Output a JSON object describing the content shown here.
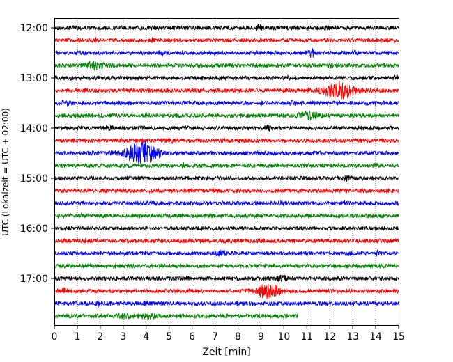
{
  "chart_data": {
    "type": "line",
    "title": "",
    "xlabel": "Zeit  [min]",
    "ylabel": "UTC (Lokalzeit = UTC + 02:00)",
    "xlim": [
      0,
      15
    ],
    "x_ticks": [
      0,
      1,
      2,
      3,
      4,
      5,
      6,
      7,
      8,
      9,
      10,
      11,
      12,
      13,
      14,
      15
    ],
    "y_ticks": [
      "12:00",
      "13:00",
      "14:00",
      "15:00",
      "16:00",
      "17:00"
    ],
    "trace_start": "12:00",
    "trace_interval_min": 15,
    "grid_vertical": "dotted",
    "colors": [
      "#000000",
      "#ff0000",
      "#0000ff",
      "#008000"
    ],
    "traces": [
      {
        "start": "12:00",
        "color": "#000000",
        "end_min": 15,
        "events": [
          {
            "t": 3.8,
            "amp": 0.3,
            "dur": 0.8
          },
          {
            "t": 8.9,
            "amp": 0.9,
            "dur": 0.2
          },
          {
            "t": 11.1,
            "amp": 0.5,
            "dur": 0.2
          }
        ]
      },
      {
        "start": "12:15",
        "color": "#ff0000",
        "end_min": 15,
        "events": [
          {
            "t": 1.8,
            "amp": 0.7,
            "dur": 0.2
          },
          {
            "t": 4.3,
            "amp": 0.4,
            "dur": 0.3
          }
        ]
      },
      {
        "start": "12:30",
        "color": "#0000ff",
        "end_min": 15,
        "events": [
          {
            "t": 4.7,
            "amp": 0.5,
            "dur": 0.3
          },
          {
            "t": 11.2,
            "amp": 1.6,
            "dur": 0.3
          },
          {
            "t": 13.1,
            "amp": 0.3,
            "dur": 0.3
          }
        ]
      },
      {
        "start": "12:45",
        "color": "#008000",
        "end_min": 15,
        "events": [
          {
            "t": 1.7,
            "amp": 1.3,
            "dur": 1.0
          },
          {
            "t": 12.1,
            "amp": 0.6,
            "dur": 0.3
          }
        ]
      },
      {
        "start": "13:00",
        "color": "#000000",
        "end_min": 15,
        "events": [
          {
            "t": 10.1,
            "amp": 0.4,
            "dur": 0.3
          },
          {
            "t": 14.9,
            "amp": 0.8,
            "dur": 0.2
          }
        ]
      },
      {
        "start": "13:15",
        "color": "#ff0000",
        "end_min": 15,
        "events": [
          {
            "t": 11.1,
            "amp": 0.8,
            "dur": 0.3
          },
          {
            "t": 12.4,
            "amp": 3.5,
            "dur": 1.6
          }
        ]
      },
      {
        "start": "13:30",
        "color": "#0000ff",
        "end_min": 15,
        "events": [
          {
            "t": 0.5,
            "amp": 0.7,
            "dur": 0.5
          },
          {
            "t": 10.4,
            "amp": 0.4,
            "dur": 0.3
          }
        ]
      },
      {
        "start": "13:45",
        "color": "#008000",
        "end_min": 15,
        "events": [
          {
            "t": 11.0,
            "amp": 1.6,
            "dur": 1.0
          }
        ]
      },
      {
        "start": "14:00",
        "color": "#000000",
        "end_min": 15,
        "events": [
          {
            "t": 2.4,
            "amp": 0.8,
            "dur": 0.3
          },
          {
            "t": 9.3,
            "amp": 0.7,
            "dur": 0.3
          }
        ]
      },
      {
        "start": "14:15",
        "color": "#ff0000",
        "end_min": 15,
        "events": [
          {
            "t": 5.0,
            "amp": 0.5,
            "dur": 0.6
          }
        ]
      },
      {
        "start": "14:30",
        "color": "#0000ff",
        "end_min": 15,
        "events": [
          {
            "t": 3.8,
            "amp": 5.0,
            "dur": 1.6
          }
        ]
      },
      {
        "start": "14:45",
        "color": "#008000",
        "end_min": 15,
        "events": [
          {
            "t": 5.6,
            "amp": 0.6,
            "dur": 0.2
          },
          {
            "t": 14.0,
            "amp": 0.6,
            "dur": 0.2
          }
        ]
      },
      {
        "start": "15:00",
        "color": "#000000",
        "end_min": 15,
        "events": [
          {
            "t": 12.8,
            "amp": 0.5,
            "dur": 0.5
          }
        ]
      },
      {
        "start": "15:15",
        "color": "#ff0000",
        "end_min": 15,
        "events": []
      },
      {
        "start": "15:30",
        "color": "#0000ff",
        "end_min": 15,
        "events": [
          {
            "t": 9.9,
            "amp": 0.7,
            "dur": 0.3
          },
          {
            "t": 12.7,
            "amp": 0.5,
            "dur": 0.2
          }
        ]
      },
      {
        "start": "15:45",
        "color": "#008000",
        "end_min": 15,
        "events": [
          {
            "t": 1.2,
            "amp": 0.5,
            "dur": 0.3
          },
          {
            "t": 11.0,
            "amp": 0.3,
            "dur": 0.5
          }
        ]
      },
      {
        "start": "16:00",
        "color": "#000000",
        "end_min": 15,
        "events": []
      },
      {
        "start": "16:15",
        "color": "#ff0000",
        "end_min": 15,
        "events": [
          {
            "t": 3.1,
            "amp": 0.4,
            "dur": 0.3
          }
        ]
      },
      {
        "start": "16:30",
        "color": "#0000ff",
        "end_min": 15,
        "events": [
          {
            "t": 7.3,
            "amp": 1.1,
            "dur": 0.6
          },
          {
            "t": 14.1,
            "amp": 0.6,
            "dur": 0.2
          }
        ]
      },
      {
        "start": "16:45",
        "color": "#008000",
        "end_min": 15,
        "events": [
          {
            "t": 2.6,
            "amp": 0.5,
            "dur": 0.2
          }
        ]
      },
      {
        "start": "17:00",
        "color": "#000000",
        "end_min": 15,
        "events": [
          {
            "t": 5.8,
            "amp": 0.6,
            "dur": 0.2
          },
          {
            "t": 9.9,
            "amp": 0.9,
            "dur": 0.5
          }
        ]
      },
      {
        "start": "17:15",
        "color": "#ff0000",
        "end_min": 15,
        "events": [
          {
            "t": 0.4,
            "amp": 1.1,
            "dur": 0.2
          },
          {
            "t": 9.3,
            "amp": 3.5,
            "dur": 1.1
          }
        ]
      },
      {
        "start": "17:30",
        "color": "#0000ff",
        "end_min": 15,
        "events": [
          {
            "t": 1.9,
            "amp": 0.8,
            "dur": 0.2
          },
          {
            "t": 4.0,
            "amp": 0.5,
            "dur": 0.2
          }
        ]
      },
      {
        "start": "17:45",
        "color": "#008000",
        "end_min": 10.6,
        "events": [
          {
            "t": 3.0,
            "amp": 1.0,
            "dur": 0.6
          },
          {
            "t": 4.1,
            "amp": 1.7,
            "dur": 0.6
          }
        ]
      }
    ]
  }
}
